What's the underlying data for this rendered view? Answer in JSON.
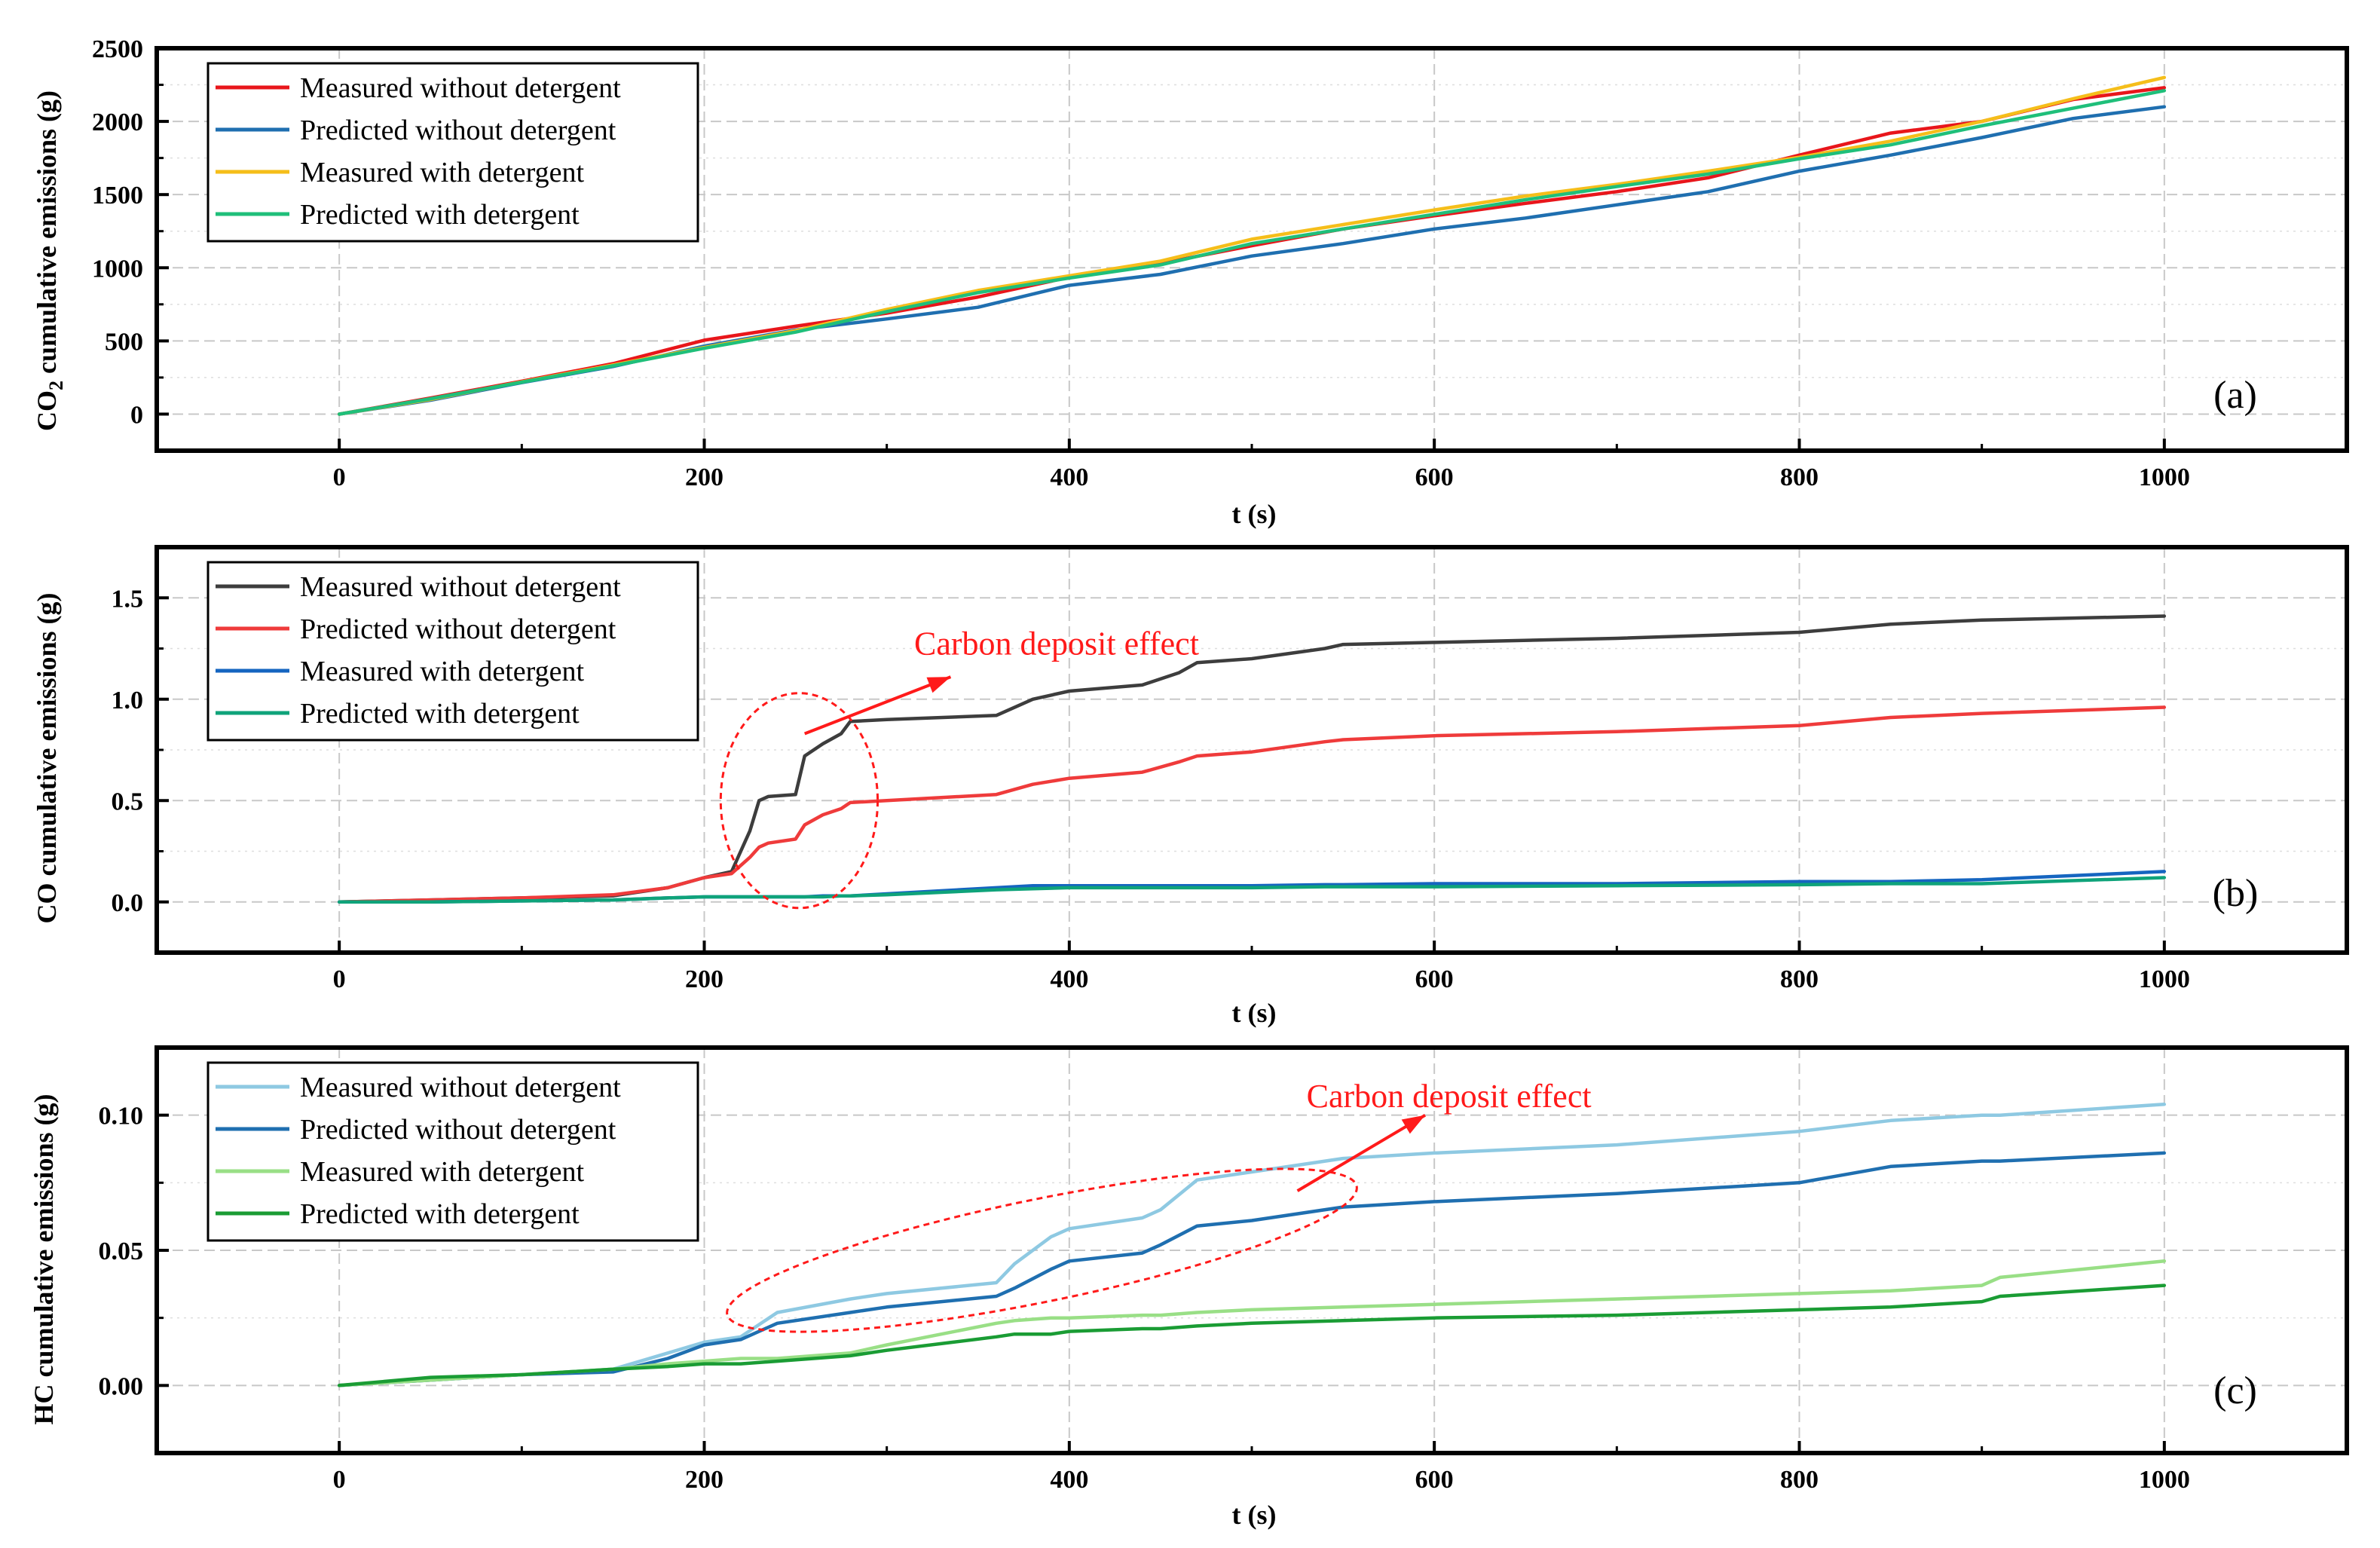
{
  "figure": {
    "colors": {
      "frame": "#000000",
      "grid": "#c8c8c8",
      "annotation": "#ff1a1a"
    }
  },
  "chart_data": [
    {
      "id": "a",
      "type": "line",
      "panel_label": "(a)",
      "xlabel": "t (s)",
      "ylabel_parts": [
        "CO",
        "2",
        " cumulative emissions (g)"
      ],
      "xlim": [
        -100,
        1100
      ],
      "ylim": [
        -250,
        2500
      ],
      "xticks": [
        0,
        200,
        400,
        600,
        800,
        1000
      ],
      "yticks": [
        0,
        500,
        1000,
        1500,
        2000,
        2500
      ],
      "ytick_labels": [
        "0",
        "500",
        "1000",
        "1500",
        "2000",
        "2500"
      ],
      "x": [
        0,
        50,
        100,
        150,
        200,
        250,
        300,
        350,
        400,
        450,
        500,
        550,
        600,
        650,
        700,
        750,
        800,
        850,
        900,
        950,
        1000
      ],
      "series": [
        {
          "name": "Measured without detergent",
          "color": "#e8161b",
          "values": [
            0,
            110,
            225,
            345,
            505,
            600,
            690,
            800,
            935,
            1030,
            1150,
            1265,
            1355,
            1440,
            1520,
            1615,
            1770,
            1920,
            2000,
            2150,
            2230
          ]
        },
        {
          "name": "Predicted without detergent",
          "color": "#1f6fb0",
          "values": [
            0,
            95,
            215,
            325,
            465,
            575,
            650,
            730,
            880,
            955,
            1080,
            1165,
            1265,
            1340,
            1430,
            1520,
            1660,
            1770,
            1890,
            2020,
            2100
          ]
        },
        {
          "name": "Measured with detergent",
          "color": "#f5be1a",
          "values": [
            0,
            100,
            220,
            335,
            455,
            570,
            715,
            845,
            945,
            1045,
            1195,
            1295,
            1395,
            1490,
            1570,
            1660,
            1755,
            1865,
            2000,
            2155,
            2300
          ]
        },
        {
          "name": "Predicted with detergent",
          "color": "#1fbf7a",
          "values": [
            0,
            105,
            218,
            330,
            450,
            560,
            700,
            830,
            930,
            1020,
            1165,
            1265,
            1365,
            1465,
            1555,
            1640,
            1745,
            1840,
            1970,
            2090,
            2210
          ]
        }
      ],
      "annotations": []
    },
    {
      "id": "b",
      "type": "line",
      "panel_label": "(b)",
      "xlabel": "t (s)",
      "ylabel": "CO cumulative emissions (g)",
      "xlim": [
        -100,
        1100
      ],
      "ylim": [
        -0.25,
        1.75
      ],
      "xticks": [
        0,
        200,
        400,
        600,
        800,
        1000
      ],
      "yticks": [
        0,
        0.5,
        1.0,
        1.5
      ],
      "ytick_labels": [
        "0.0",
        "0.5",
        "1.0",
        "1.5"
      ],
      "x": [
        0,
        50,
        100,
        150,
        180,
        200,
        215,
        225,
        230,
        235,
        250,
        255,
        265,
        275,
        280,
        300,
        360,
        380,
        400,
        440,
        460,
        470,
        500,
        540,
        550,
        600,
        700,
        800,
        850,
        900,
        1000
      ],
      "series": [
        {
          "name": "Measured without detergent",
          "color": "#3d3d3d",
          "values": [
            0,
            0.01,
            0.02,
            0.03,
            0.07,
            0.12,
            0.15,
            0.35,
            0.5,
            0.52,
            0.53,
            0.72,
            0.78,
            0.83,
            0.89,
            0.9,
            0.92,
            1.0,
            1.04,
            1.07,
            1.13,
            1.18,
            1.2,
            1.25,
            1.27,
            1.28,
            1.3,
            1.33,
            1.37,
            1.39,
            1.41
          ]
        },
        {
          "name": "Predicted without detergent",
          "color": "#ef3b3b",
          "values": [
            0,
            0.01,
            0.02,
            0.035,
            0.07,
            0.12,
            0.14,
            0.22,
            0.27,
            0.29,
            0.31,
            0.38,
            0.43,
            0.46,
            0.49,
            0.5,
            0.53,
            0.58,
            0.61,
            0.64,
            0.69,
            0.72,
            0.74,
            0.79,
            0.8,
            0.82,
            0.84,
            0.87,
            0.91,
            0.93,
            0.96
          ]
        },
        {
          "name": "Measured with detergent",
          "color": "#1565c0",
          "values": [
            0,
            0,
            0.005,
            0.01,
            0.02,
            0.025,
            0.025,
            0.025,
            0.025,
            0.025,
            0.025,
            0.025,
            0.03,
            0.03,
            0.03,
            0.04,
            0.07,
            0.08,
            0.08,
            0.08,
            0.08,
            0.08,
            0.08,
            0.085,
            0.085,
            0.09,
            0.09,
            0.1,
            0.1,
            0.11,
            0.15
          ]
        },
        {
          "name": "Predicted with detergent",
          "color": "#0fa37a",
          "values": [
            0,
            0,
            0.005,
            0.01,
            0.02,
            0.025,
            0.025,
            0.025,
            0.025,
            0.025,
            0.025,
            0.025,
            0.025,
            0.03,
            0.03,
            0.035,
            0.06,
            0.065,
            0.07,
            0.07,
            0.07,
            0.07,
            0.07,
            0.075,
            0.075,
            0.075,
            0.08,
            0.085,
            0.09,
            0.09,
            0.12
          ]
        }
      ],
      "annotations": [
        {
          "text": "Carbon deposit effect",
          "color": "#ff1a1a",
          "x": 315,
          "y": 1.22,
          "arrow_from": [
            255,
            0.83
          ],
          "arrow_to": [
            335,
            1.11
          ],
          "ellipse": {
            "cx": 252,
            "cy": 0.5,
            "rx": 43,
            "ry": 0.53,
            "angle": 0
          }
        }
      ]
    },
    {
      "id": "c",
      "type": "line",
      "panel_label": "(c)",
      "xlabel": "t (s)",
      "ylabel": "HC cumulative emissions (g)",
      "xlim": [
        -100,
        1100
      ],
      "ylim": [
        -0.025,
        0.125
      ],
      "xticks": [
        0,
        200,
        400,
        600,
        800,
        1000
      ],
      "yticks": [
        0,
        0.05,
        0.1
      ],
      "ytick_labels": [
        "0.00",
        "0.05",
        "0.10"
      ],
      "x": [
        0,
        50,
        100,
        150,
        180,
        200,
        220,
        240,
        280,
        300,
        360,
        370,
        390,
        400,
        440,
        450,
        470,
        500,
        550,
        600,
        700,
        800,
        850,
        900,
        910,
        1000
      ],
      "series": [
        {
          "name": "Measured without detergent",
          "color": "#8ec9e2",
          "values": [
            0,
            0.002,
            0.004,
            0.006,
            0.012,
            0.016,
            0.018,
            0.027,
            0.032,
            0.034,
            0.038,
            0.045,
            0.055,
            0.058,
            0.062,
            0.065,
            0.076,
            0.079,
            0.084,
            0.086,
            0.089,
            0.094,
            0.098,
            0.1,
            0.1,
            0.104
          ]
        },
        {
          "name": "Predicted without detergent",
          "color": "#1f6fb0",
          "values": [
            0,
            0.002,
            0.004,
            0.005,
            0.01,
            0.015,
            0.017,
            0.023,
            0.027,
            0.029,
            0.033,
            0.036,
            0.043,
            0.046,
            0.049,
            0.052,
            0.059,
            0.061,
            0.066,
            0.068,
            0.071,
            0.075,
            0.081,
            0.083,
            0.083,
            0.086
          ]
        },
        {
          "name": "Measured with detergent",
          "color": "#99df86",
          "values": [
            0,
            0.002,
            0.004,
            0.006,
            0.008,
            0.009,
            0.01,
            0.01,
            0.012,
            0.015,
            0.023,
            0.024,
            0.025,
            0.025,
            0.026,
            0.026,
            0.027,
            0.028,
            0.029,
            0.03,
            0.032,
            0.034,
            0.035,
            0.037,
            0.04,
            0.046
          ]
        },
        {
          "name": "Predicted with detergent",
          "color": "#1a9c34",
          "values": [
            0,
            0.003,
            0.004,
            0.006,
            0.007,
            0.008,
            0.008,
            0.009,
            0.011,
            0.013,
            0.018,
            0.019,
            0.019,
            0.02,
            0.021,
            0.021,
            0.022,
            0.023,
            0.024,
            0.025,
            0.026,
            0.028,
            0.029,
            0.031,
            0.033,
            0.037
          ]
        }
      ],
      "annotations": [
        {
          "text": "Carbon deposit effect",
          "color": "#ff1a1a",
          "x": 530,
          "y": 0.103,
          "arrow_from": [
            525,
            0.072
          ],
          "arrow_to": [
            595,
            0.1
          ],
          "ellipse": {
            "cx": 385,
            "cy": 0.05,
            "rx": 176,
            "ry": 0.019,
            "angle": -11.5
          }
        }
      ]
    }
  ]
}
